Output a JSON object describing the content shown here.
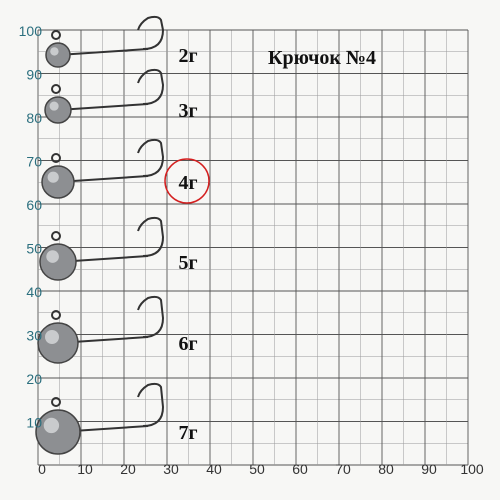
{
  "title": "Крючок №4",
  "weights": [
    "2г",
    "3г",
    "4г",
    "5г",
    "6г",
    "7г"
  ],
  "x_labels": [
    "0",
    "10",
    "20",
    "30",
    "40",
    "50",
    "60",
    "70",
    "80",
    "90",
    "100"
  ],
  "y_labels": [
    "100",
    "90",
    "80",
    "70",
    "60",
    "50",
    "40",
    "30",
    "20",
    "10"
  ]
}
